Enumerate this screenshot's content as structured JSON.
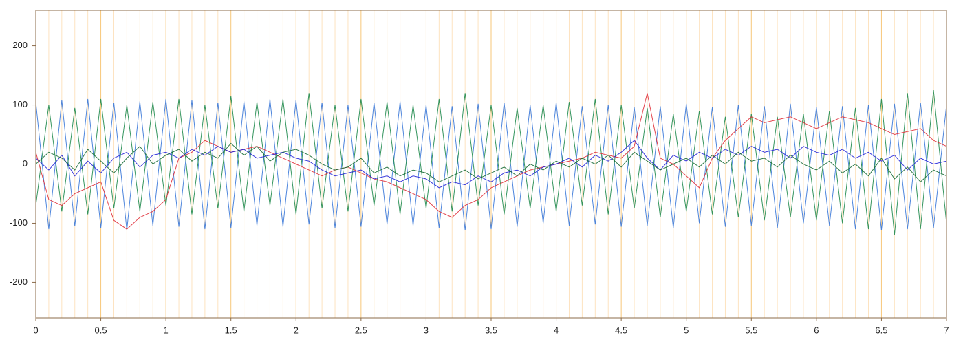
{
  "chart_data": {
    "type": "line",
    "x": [
      0,
      0.1,
      0.2,
      0.3,
      0.4,
      0.5,
      0.6,
      0.7,
      0.8,
      0.9,
      1,
      1.1,
      1.2,
      1.3,
      1.4,
      1.5,
      1.6,
      1.7,
      1.8,
      1.9,
      2,
      2.1,
      2.2,
      2.3,
      2.4,
      2.5,
      2.6,
      2.7,
      2.8,
      2.9,
      3,
      3.1,
      3.2,
      3.3,
      3.4,
      3.5,
      3.6,
      3.7,
      3.8,
      3.9,
      4,
      4.1,
      4.2,
      4.3,
      4.4,
      4.5,
      4.6,
      4.7,
      4.8,
      4.9,
      5,
      5.1,
      5.2,
      5.3,
      5.4,
      5.5,
      5.6,
      5.7,
      5.8,
      5.9,
      6,
      6.1,
      6.2,
      6.3,
      6.4,
      6.5,
      6.6,
      6.7,
      6.8,
      6.9,
      7
    ],
    "series": [
      {
        "color": "#3a78d8",
        "values": [
          105,
          -110,
          108,
          -105,
          110,
          -108,
          104,
          -112,
          106,
          -104,
          110,
          -106,
          108,
          -110,
          104,
          -108,
          106,
          -104,
          110,
          -106,
          108,
          -102,
          104,
          -108,
          100,
          -106,
          104,
          -102,
          106,
          -104,
          100,
          -108,
          98,
          -112,
          102,
          -110,
          104,
          -106,
          100,
          -100,
          104,
          -104,
          98,
          -102,
          100,
          -106,
          96,
          -104,
          98,
          -108,
          102,
          -100,
          96,
          -106,
          100,
          -104,
          98,
          -108,
          102,
          -100,
          96,
          -104,
          98,
          -110,
          100,
          -112,
          102,
          -110,
          104,
          -108,
          100
        ]
      },
      {
        "color": "#1f8a4c",
        "values": [
          -70,
          100,
          -80,
          95,
          -85,
          110,
          -75,
          100,
          -80,
          105,
          -70,
          110,
          -85,
          100,
          -75,
          115,
          -80,
          105,
          -70,
          110,
          -85,
          120,
          -75,
          100,
          -80,
          110,
          -70,
          105,
          -85,
          100,
          -75,
          110,
          -80,
          120,
          -70,
          100,
          -85,
          95,
          -75,
          100,
          -80,
          105,
          -70,
          110,
          -85,
          100,
          -75,
          95,
          -90,
          85,
          -80,
          90,
          -85,
          80,
          -90,
          85,
          -95,
          80,
          -90,
          85,
          -95,
          90,
          -100,
          95,
          -110,
          110,
          -120,
          120,
          -110,
          125,
          -100
        ]
      },
      {
        "color": "#e0303a",
        "values": [
          20,
          -60,
          -70,
          -50,
          -40,
          -30,
          -95,
          -110,
          -90,
          -80,
          -60,
          10,
          20,
          40,
          30,
          20,
          25,
          30,
          20,
          10,
          0,
          -10,
          -20,
          -10,
          -5,
          -15,
          -25,
          -30,
          -40,
          -50,
          -60,
          -80,
          -90,
          -70,
          -60,
          -40,
          -30,
          -20,
          -10,
          -5,
          0,
          5,
          10,
          20,
          15,
          10,
          30,
          120,
          10,
          0,
          -20,
          -40,
          10,
          40,
          60,
          80,
          70,
          75,
          80,
          70,
          60,
          70,
          80,
          75,
          70,
          60,
          50,
          55,
          60,
          40,
          30
        ]
      },
      {
        "color": "#2424d8",
        "values": [
          10,
          -10,
          15,
          -20,
          5,
          -15,
          10,
          20,
          -5,
          15,
          20,
          10,
          25,
          15,
          30,
          20,
          25,
          10,
          15,
          20,
          10,
          5,
          -10,
          -20,
          -15,
          -10,
          -25,
          -20,
          -30,
          -20,
          -25,
          -40,
          -30,
          -35,
          -20,
          -30,
          -15,
          -10,
          -20,
          -5,
          0,
          10,
          -5,
          15,
          5,
          20,
          40,
          10,
          -10,
          15,
          5,
          20,
          10,
          25,
          15,
          30,
          20,
          25,
          10,
          30,
          20,
          15,
          25,
          10,
          20,
          5,
          15,
          -10,
          10,
          0,
          5
        ]
      },
      {
        "color": "#166a34",
        "values": [
          0,
          20,
          10,
          -10,
          25,
          5,
          -15,
          10,
          30,
          0,
          15,
          25,
          5,
          20,
          10,
          35,
          15,
          30,
          5,
          20,
          25,
          15,
          0,
          -10,
          -5,
          10,
          -15,
          -5,
          -20,
          -10,
          -15,
          -30,
          -20,
          -10,
          -25,
          -15,
          -5,
          -20,
          0,
          -10,
          5,
          -5,
          10,
          0,
          15,
          -5,
          20,
          5,
          -10,
          0,
          10,
          -5,
          15,
          0,
          20,
          5,
          10,
          -5,
          15,
          0,
          -10,
          5,
          -15,
          0,
          -20,
          10,
          -25,
          -5,
          -30,
          -10,
          -20
        ]
      }
    ],
    "xlim": [
      0,
      7
    ],
    "ylim": [
      -260,
      260
    ],
    "xticks": [
      0,
      0.5,
      1,
      1.5,
      2,
      2.5,
      3,
      3.5,
      4,
      4.5,
      5,
      5.5,
      6,
      6.5,
      7
    ],
    "xminorticks": [
      0.1,
      0.2,
      0.3,
      0.4,
      0.6,
      0.7,
      0.8,
      0.9,
      1.1,
      1.2,
      1.3,
      1.4,
      1.6,
      1.7,
      1.8,
      1.9,
      2.1,
      2.2,
      2.3,
      2.4,
      2.6,
      2.7,
      2.8,
      2.9,
      3.1,
      3.2,
      3.3,
      3.4,
      3.6,
      3.7,
      3.8,
      3.9,
      4.1,
      4.2,
      4.3,
      4.4,
      4.6,
      4.7,
      4.8,
      4.9,
      5.1,
      5.2,
      5.3,
      5.4,
      5.6,
      5.7,
      5.8,
      5.9,
      6.1,
      6.2,
      6.3,
      6.4,
      6.6,
      6.7,
      6.8,
      6.9
    ],
    "yticks": [
      -200,
      -100,
      0,
      100,
      200
    ],
    "grid": true
  }
}
